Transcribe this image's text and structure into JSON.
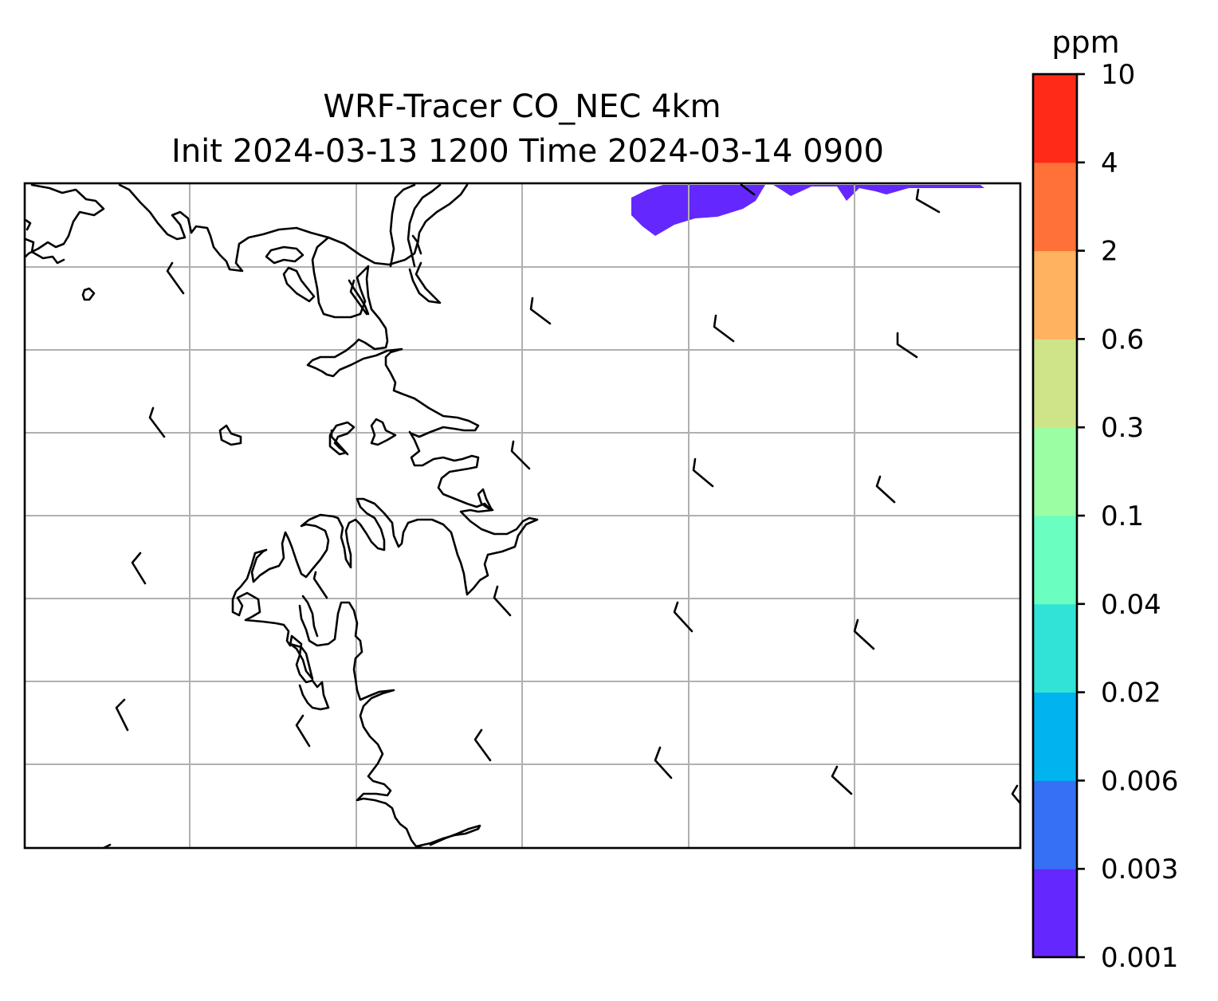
{
  "map": {
    "title_line1": "WRF-Tracer CO_NEC 4km",
    "title_line2": "Init 2024-03-13 1200 Time 2024-03-14 0900",
    "background_color": "#ffffff",
    "coastline_color": "#000000",
    "gridline_color": "#b0b0b0",
    "gridlines": true,
    "field_region_color": "#6428ff"
  },
  "colorbar": {
    "unit": "ppm",
    "orientation": "vertical",
    "placement": "right",
    "levels": [
      "0.001",
      "0.003",
      "0.006",
      "0.02",
      "0.04",
      "0.1",
      "0.3",
      "0.6",
      "2",
      "4",
      "10"
    ],
    "colors": [
      "#6428ff",
      "#3570f5",
      "#01b3ee",
      "#31e2d7",
      "#6afec0",
      "#9cfea3",
      "#cfe389",
      "#ffb260",
      "#ff7138",
      "#ff2a17"
    ]
  }
}
